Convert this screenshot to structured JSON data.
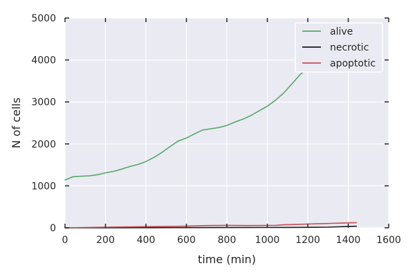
{
  "chart_data": {
    "type": "line",
    "title": "",
    "xlabel": "time (min)",
    "ylabel": "N of cells",
    "xlim": [
      0,
      1600
    ],
    "ylim": [
      0,
      5000
    ],
    "xticks": [
      0,
      200,
      400,
      600,
      800,
      1000,
      1200,
      1400,
      1600
    ],
    "yticks": [
      0,
      1000,
      2000,
      3000,
      4000,
      5000
    ],
    "grid": true,
    "legend_position": "top-right",
    "colors": {
      "plot_background": "#EAEAF2",
      "grid": "#FFFFFF",
      "text": "#262626",
      "tick_marks": "#262626"
    },
    "series": [
      {
        "name": "alive",
        "color": "#55A868",
        "x": [
          0,
          40,
          80,
          120,
          160,
          200,
          240,
          280,
          320,
          360,
          400,
          440,
          480,
          520,
          560,
          600,
          640,
          680,
          720,
          760,
          800,
          840,
          880,
          920,
          960,
          1000,
          1040,
          1080,
          1120,
          1160,
          1200,
          1240,
          1280,
          1320,
          1360,
          1400,
          1440
        ],
        "y": [
          1140,
          1220,
          1230,
          1240,
          1265,
          1310,
          1345,
          1400,
          1460,
          1510,
          1580,
          1680,
          1800,
          1940,
          2070,
          2140,
          2240,
          2330,
          2360,
          2390,
          2440,
          2520,
          2590,
          2680,
          2790,
          2900,
          3040,
          3210,
          3420,
          3640,
          3810,
          3930,
          4030,
          4150,
          4250,
          4360,
          4460
        ]
      },
      {
        "name": "necrotic",
        "color": "#1A1A1A",
        "x": [
          0,
          200,
          400,
          600,
          800,
          1000,
          1100,
          1200,
          1300,
          1350,
          1400,
          1440
        ],
        "y": [
          0,
          2,
          4,
          5,
          7,
          8,
          10,
          12,
          16,
          24,
          32,
          38
        ]
      },
      {
        "name": "apoptotic",
        "color": "#C44E52",
        "x": [
          0,
          100,
          200,
          300,
          400,
          500,
          600,
          700,
          800,
          900,
          1000,
          1040,
          1080,
          1120,
          1160,
          1200,
          1240,
          1280,
          1320,
          1360,
          1400,
          1440
        ],
        "y": [
          0,
          8,
          15,
          22,
          28,
          35,
          40,
          55,
          60,
          55,
          58,
          60,
          72,
          78,
          84,
          90,
          95,
          100,
          108,
          112,
          118,
          122
        ]
      }
    ]
  }
}
